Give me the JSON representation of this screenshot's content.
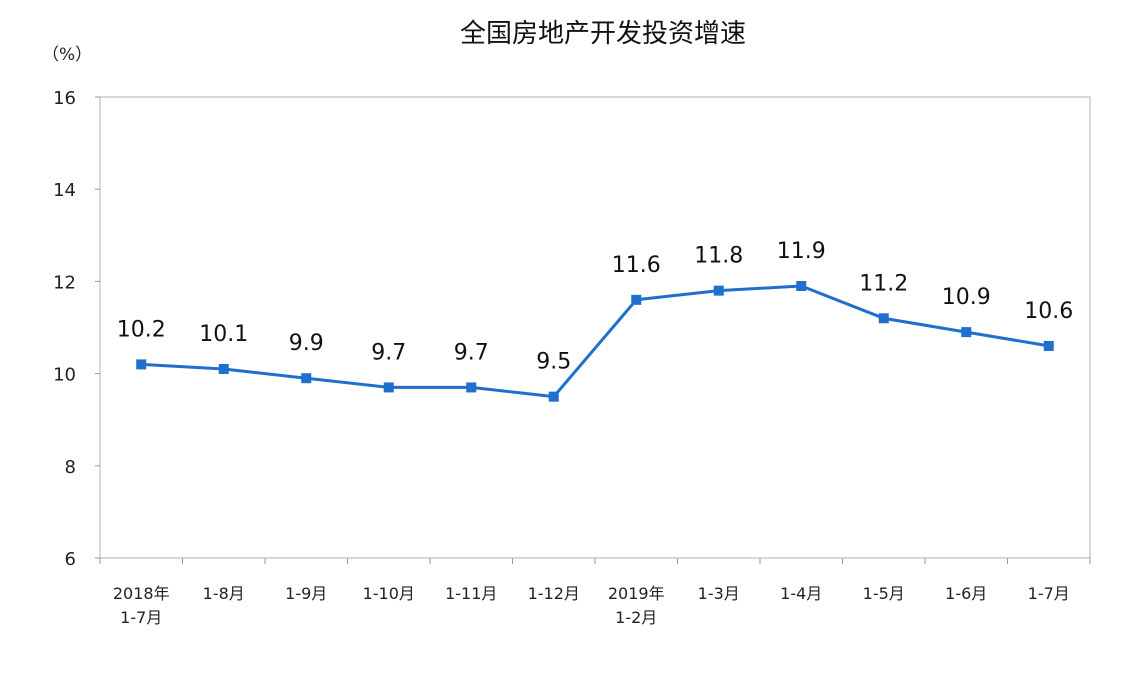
{
  "chart_data": {
    "type": "line",
    "title": "全国房地产开发投资增速",
    "ylabel": "（%）",
    "xlabel": "",
    "ylim": [
      6,
      16
    ],
    "yticks": [
      6,
      8,
      10,
      12,
      14,
      16
    ],
    "grid": false,
    "legend": "none",
    "categories": [
      [
        "2018年",
        "1-7月"
      ],
      [
        "1-8月"
      ],
      [
        "1-9月"
      ],
      [
        "1-10月"
      ],
      [
        "1-11月"
      ],
      [
        "1-12月"
      ],
      [
        "2019年",
        "1-2月"
      ],
      [
        "1-3月"
      ],
      [
        "1-4月"
      ],
      [
        "1-5月"
      ],
      [
        "1-6月"
      ],
      [
        "1-7月"
      ]
    ],
    "series": [
      {
        "values": [
          10.2,
          10.1,
          9.9,
          9.7,
          9.7,
          9.5,
          11.6,
          11.8,
          11.9,
          11.2,
          10.9,
          10.6
        ],
        "color": "#1f6fcf"
      }
    ],
    "data_labels": [
      "10.2",
      "10.1",
      "9.9",
      "9.7",
      "9.7",
      "9.5",
      "11.6",
      "11.8",
      "11.9",
      "11.2",
      "10.9",
      "10.6"
    ]
  }
}
